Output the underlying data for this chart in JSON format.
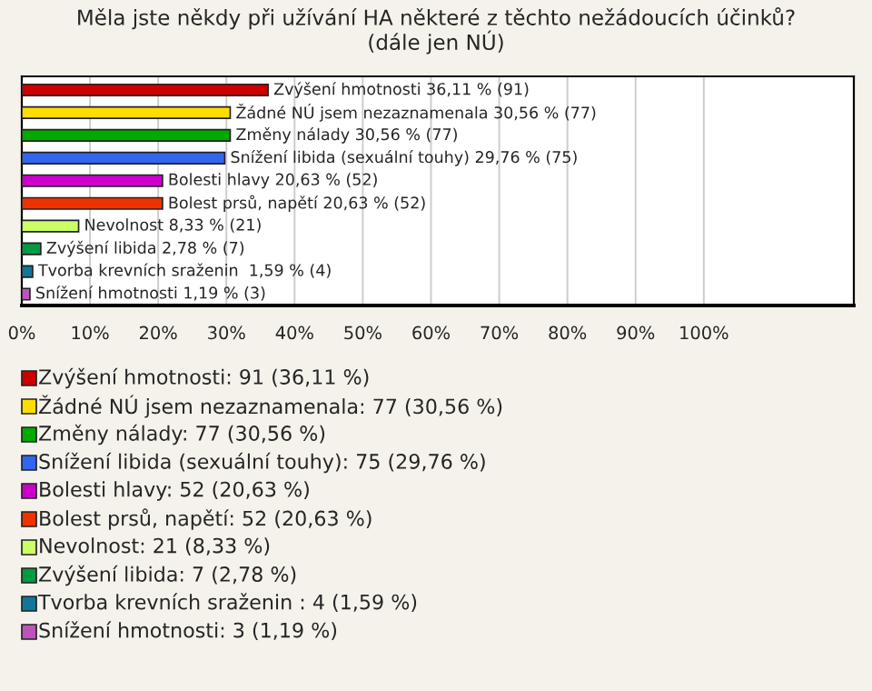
{
  "chart_data": {
    "type": "bar",
    "orientation": "horizontal",
    "title": "Měla jste někdy při užívání HA některé z těchto nežádoucích účinků?\n(dále jen NÚ)",
    "categories": [
      null,
      null,
      null,
      null,
      null,
      null,
      null,
      null,
      null,
      null
    ],
    "values": [
      36.11,
      30.56,
      30.56,
      29.76,
      20.63,
      20.63,
      8.33,
      2.78,
      1.59,
      1.19
    ],
    "colors": [
      "#cc0000",
      "#ffdd00",
      "#00aa00",
      "#3366ee",
      "#cc00cc",
      "#ee3300",
      "#ccff66",
      "#009944",
      "#117799",
      "#bb55bb"
    ],
    "value_labels": [
      "Zvýšení hmotnosti 36,11 % (91)",
      "Žádné NÚ jsem nezaznamenala 30,56 % (77)",
      "Změny nálady 30,56 % (77)",
      "Snížení libida (sexuální touhy) 29,76 % (75)",
      "Bolesti hlavy 20,63 % (52)",
      "Bolest prsů, napětí 20,63 % (52)",
      "Nevolnost 8,33 % (21)",
      "Zvýšení libida 2,78 % (7)",
      "Tvorba krevních sraženin  1,59 % (4)",
      "Snížení hmotnosti 1,19 % (3)"
    ],
    "xlim": [
      0,
      122
    ],
    "xticks": [
      {
        "value": 0,
        "label": "0%"
      },
      {
        "value": 10,
        "label": "10%"
      },
      {
        "value": 20,
        "label": "20%"
      },
      {
        "value": 30,
        "label": "30%"
      },
      {
        "value": 40,
        "label": "40%"
      },
      {
        "value": 50,
        "label": "50%"
      },
      {
        "value": 60,
        "label": "60%"
      },
      {
        "value": 70,
        "label": "70%"
      },
      {
        "value": 80,
        "label": "80%"
      },
      {
        "value": 90,
        "label": "90%"
      },
      {
        "value": 100,
        "label": "100%"
      }
    ],
    "grid": "x",
    "annotations": [
      "Zvýšení hmotnosti: 91 (36,11 %)",
      "Žádné NÚ jsem nezaznamenala: 77 (30,56 %)",
      "Změny nálady: 77 (30,56 %)",
      "Snížení libida (sexuální touhy): 75 (29,76 %)",
      "Bolesti hlavy: 52 (20,63 %)",
      "Bolest prsů, napětí: 52 (20,63 %)",
      "Nevolnost: 21 (8,33 %)",
      "Zvýšení libida: 7 (2,78 %)",
      "Tvorba krevních sraženin : 4 (1,59 %)",
      "Snížení hmotnosti: 3 (1,19 %)"
    ]
  }
}
